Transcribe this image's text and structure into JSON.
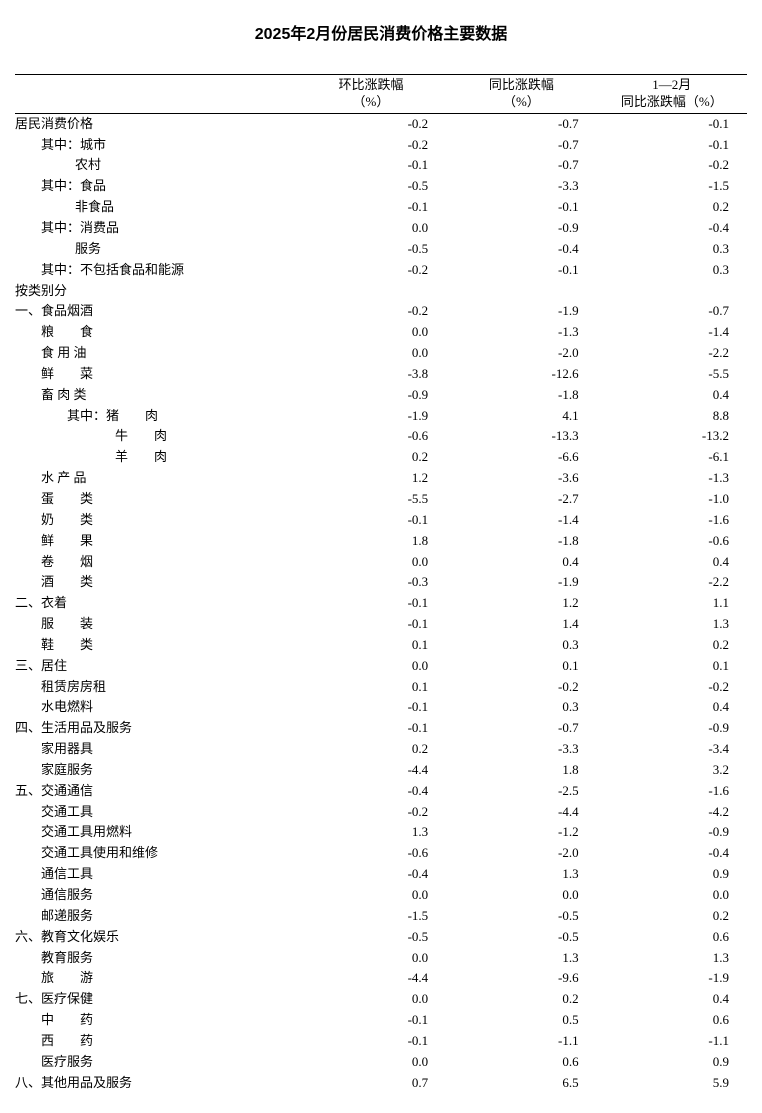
{
  "title": "2025年2月份居民消费价格主要数据",
  "columns": {
    "label": "",
    "mom": "环比涨跌幅\n（%）",
    "yoy": "同比涨跌幅\n（%）",
    "ytd": "1—2月\n同比涨跌幅（%）"
  },
  "rows": [
    {
      "label": "居民消费价格",
      "indent": "indent-0",
      "mom": "-0.2",
      "yoy": "-0.7",
      "ytd": "-0.1"
    },
    {
      "label": "其中：城市",
      "indent": "indent-1",
      "mom": "-0.2",
      "yoy": "-0.7",
      "ytd": "-0.1"
    },
    {
      "label": "农村",
      "indent": "indent-2",
      "mom": "-0.1",
      "yoy": "-0.7",
      "ytd": "-0.2"
    },
    {
      "label": "其中：食品",
      "indent": "indent-1",
      "mom": "-0.5",
      "yoy": "-3.3",
      "ytd": "-1.5"
    },
    {
      "label": "非食品",
      "indent": "indent-2",
      "mom": "-0.1",
      "yoy": "-0.1",
      "ytd": "0.2"
    },
    {
      "label": "其中：消费品",
      "indent": "indent-1",
      "mom": "0.0",
      "yoy": "-0.9",
      "ytd": "-0.4"
    },
    {
      "label": "服务",
      "indent": "indent-2",
      "mom": "-0.5",
      "yoy": "-0.4",
      "ytd": "0.3"
    },
    {
      "label": "其中：不包括食品和能源",
      "indent": "indent-1",
      "mom": "-0.2",
      "yoy": "-0.1",
      "ytd": "0.3"
    },
    {
      "label": "按类别分",
      "indent": "indent-0",
      "mom": "",
      "yoy": "",
      "ytd": ""
    },
    {
      "label": "一、食品烟酒",
      "indent": "indent-0",
      "mom": "-0.2",
      "yoy": "-1.9",
      "ytd": "-0.7"
    },
    {
      "label": "粮　　食",
      "indent": "indent-1b",
      "mom": "0.0",
      "yoy": "-1.3",
      "ytd": "-1.4"
    },
    {
      "label": "食 用 油",
      "indent": "indent-1b",
      "mom": "0.0",
      "yoy": "-2.0",
      "ytd": "-2.2"
    },
    {
      "label": "鲜　　菜",
      "indent": "indent-1b",
      "mom": "-3.8",
      "yoy": "-12.6",
      "ytd": "-5.5"
    },
    {
      "label": "畜 肉 类",
      "indent": "indent-1b",
      "mom": "-0.9",
      "yoy": "-1.8",
      "ytd": "0.4"
    },
    {
      "label": "其中：猪　　肉",
      "indent": "indent-3",
      "mom": "-1.9",
      "yoy": "4.1",
      "ytd": "8.8"
    },
    {
      "label": "牛　　肉",
      "indent": "indent-4",
      "mom": "-0.6",
      "yoy": "-13.3",
      "ytd": "-13.2"
    },
    {
      "label": "羊　　肉",
      "indent": "indent-4",
      "mom": "0.2",
      "yoy": "-6.6",
      "ytd": "-6.1"
    },
    {
      "label": "水 产 品",
      "indent": "indent-1b",
      "mom": "1.2",
      "yoy": "-3.6",
      "ytd": "-1.3"
    },
    {
      "label": "蛋　　类",
      "indent": "indent-1b",
      "mom": "-5.5",
      "yoy": "-2.7",
      "ytd": "-1.0"
    },
    {
      "label": "奶　　类",
      "indent": "indent-1b",
      "mom": "-0.1",
      "yoy": "-1.4",
      "ytd": "-1.6"
    },
    {
      "label": "鲜　　果",
      "indent": "indent-1b",
      "mom": "1.8",
      "yoy": "-1.8",
      "ytd": "-0.6"
    },
    {
      "label": "卷　　烟",
      "indent": "indent-1b",
      "mom": "0.0",
      "yoy": "0.4",
      "ytd": "0.4"
    },
    {
      "label": "酒　　类",
      "indent": "indent-1b",
      "mom": "-0.3",
      "yoy": "-1.9",
      "ytd": "-2.2"
    },
    {
      "label": "二、衣着",
      "indent": "indent-0",
      "mom": "-0.1",
      "yoy": "1.2",
      "ytd": "1.1"
    },
    {
      "label": "服　　装",
      "indent": "indent-1b",
      "mom": "-0.1",
      "yoy": "1.4",
      "ytd": "1.3"
    },
    {
      "label": "鞋　　类",
      "indent": "indent-1b",
      "mom": "0.1",
      "yoy": "0.3",
      "ytd": "0.2"
    },
    {
      "label": "三、居住",
      "indent": "indent-0",
      "mom": "0.0",
      "yoy": "0.1",
      "ytd": "0.1"
    },
    {
      "label": "租赁房房租",
      "indent": "indent-1b",
      "mom": "0.1",
      "yoy": "-0.2",
      "ytd": "-0.2"
    },
    {
      "label": "水电燃料",
      "indent": "indent-1b",
      "mom": "-0.1",
      "yoy": "0.3",
      "ytd": "0.4"
    },
    {
      "label": "四、生活用品及服务",
      "indent": "indent-0",
      "mom": "-0.1",
      "yoy": "-0.7",
      "ytd": "-0.9"
    },
    {
      "label": "家用器具",
      "indent": "indent-1b",
      "mom": "0.2",
      "yoy": "-3.3",
      "ytd": "-3.4"
    },
    {
      "label": "家庭服务",
      "indent": "indent-1b",
      "mom": "-4.4",
      "yoy": "1.8",
      "ytd": "3.2"
    },
    {
      "label": "五、交通通信",
      "indent": "indent-0",
      "mom": "-0.4",
      "yoy": "-2.5",
      "ytd": "-1.6"
    },
    {
      "label": "交通工具",
      "indent": "indent-1b",
      "mom": "-0.2",
      "yoy": "-4.4",
      "ytd": "-4.2"
    },
    {
      "label": "交通工具用燃料",
      "indent": "indent-1b",
      "mom": "1.3",
      "yoy": "-1.2",
      "ytd": "-0.9"
    },
    {
      "label": "交通工具使用和维修",
      "indent": "indent-1b",
      "mom": "-0.6",
      "yoy": "-2.0",
      "ytd": "-0.4"
    },
    {
      "label": "通信工具",
      "indent": "indent-1b",
      "mom": "-0.4",
      "yoy": "1.3",
      "ytd": "0.9"
    },
    {
      "label": "通信服务",
      "indent": "indent-1b",
      "mom": "0.0",
      "yoy": "0.0",
      "ytd": "0.0"
    },
    {
      "label": "邮递服务",
      "indent": "indent-1b",
      "mom": "-1.5",
      "yoy": "-0.5",
      "ytd": "0.2"
    },
    {
      "label": "六、教育文化娱乐",
      "indent": "indent-0",
      "mom": "-0.5",
      "yoy": "-0.5",
      "ytd": "0.6"
    },
    {
      "label": "教育服务",
      "indent": "indent-1b",
      "mom": "0.0",
      "yoy": "1.3",
      "ytd": "1.3"
    },
    {
      "label": "旅　　游",
      "indent": "indent-1b",
      "mom": "-4.4",
      "yoy": "-9.6",
      "ytd": "-1.9"
    },
    {
      "label": "七、医疗保健",
      "indent": "indent-0",
      "mom": "0.0",
      "yoy": "0.2",
      "ytd": "0.4"
    },
    {
      "label": "中　　药",
      "indent": "indent-1b",
      "mom": "-0.1",
      "yoy": "0.5",
      "ytd": "0.6"
    },
    {
      "label": "西　　药",
      "indent": "indent-1b",
      "mom": "-0.1",
      "yoy": "-1.1",
      "ytd": "-1.1"
    },
    {
      "label": "医疗服务",
      "indent": "indent-1b",
      "mom": "0.0",
      "yoy": "0.6",
      "ytd": "0.9"
    },
    {
      "label": "八、其他用品及服务",
      "indent": "indent-0",
      "mom": "0.7",
      "yoy": "6.5",
      "ytd": "5.9"
    }
  ],
  "style": {
    "bg": "#ffffff",
    "text": "#000000",
    "border": "#000000",
    "font_size_body": 13,
    "font_size_title": 16
  }
}
